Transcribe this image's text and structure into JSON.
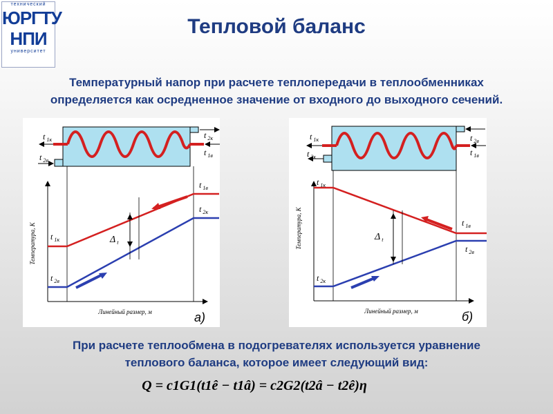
{
  "logo": {
    "top_text": "технический",
    "line1": "ЮРГТУ",
    "line2": "НПИ",
    "bottom_text": "университет"
  },
  "title": "Тепловой баланс",
  "intro": {
    "line1": "Температурный напор при расчете теплопередачи в теплообменниках",
    "line2": "определяется как осредненное значение от входного до выходного сечений."
  },
  "figures": {
    "a": {
      "caption": "а)",
      "ylabel": "Температура, К",
      "xlabel": "Линейный размер, м",
      "delta": "Δ",
      "delta_sub": "t",
      "top_labels": {
        "t1k": [
          "t",
          "1к"
        ],
        "t2v": [
          "t",
          "2в"
        ],
        "t2k": [
          "t",
          "2к"
        ],
        "t1v": [
          "t",
          "1в"
        ]
      },
      "plot_labels": {
        "t1v": [
          "t",
          "1в"
        ],
        "t2k": [
          "t",
          "2к"
        ],
        "t1k": [
          "t",
          "1к"
        ],
        "t2v": [
          "t",
          "2в"
        ]
      }
    },
    "b": {
      "caption": "б)",
      "ylabel": "Температура, К",
      "xlabel": "Линейный размер, м",
      "delta": "Δ",
      "delta_sub": "t",
      "top_labels": {
        "t1k": [
          "t",
          "1к"
        ],
        "t2k": [
          "t",
          "2к"
        ],
        "t2v": [
          "t",
          "2в"
        ],
        "t1v": [
          "t",
          "1в"
        ]
      },
      "plot_labels": {
        "t1k": [
          "t",
          "1к"
        ],
        "t1v": [
          "t",
          "1в"
        ],
        "t2v": [
          "t",
          "2в"
        ],
        "t2k": [
          "t",
          "2к"
        ]
      }
    }
  },
  "colors": {
    "hot": "#d42020",
    "cold": "#2b3fb0",
    "tank": "#aee0f0",
    "title": "#1f3c82"
  },
  "closing": {
    "line1": "При расчете теплообмена в подогревателях используется уравнение",
    "line2": "теплового баланса, которое имеет следующий вид:"
  },
  "equation": "Q = c1G1(t1ê − t1â) = c2G2(t2â − t2ê)η"
}
